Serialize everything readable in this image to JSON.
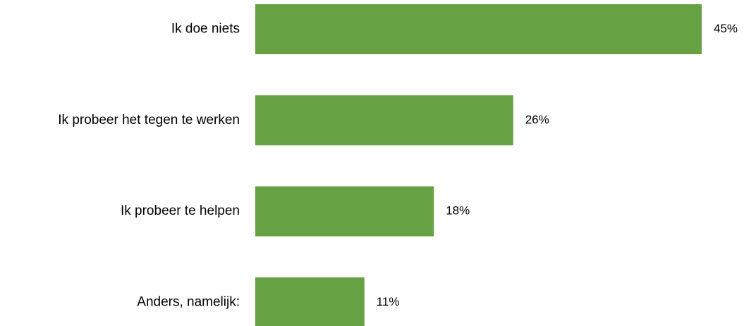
{
  "chart_data": {
    "type": "bar",
    "orientation": "horizontal",
    "categories": [
      "Ik doe niets",
      "Ik probeer het tegen te werken",
      "Ik probeer te helpen",
      "Anders, namelijk:"
    ],
    "values": [
      45,
      26,
      18,
      11
    ],
    "value_labels": [
      "45%",
      "26%",
      "18%",
      "11%"
    ],
    "unit": "%",
    "xlim": [
      0,
      45
    ],
    "grid": false,
    "legend": "none",
    "bar_color": "#66A143"
  }
}
